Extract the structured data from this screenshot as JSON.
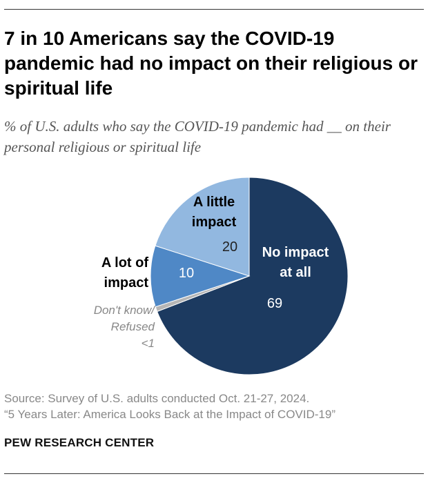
{
  "header": {
    "title": "7 in 10 Americans say the COVID-19 pandemic had no impact on their religious or spiritual life",
    "subtitle": "% of U.S. adults who say the COVID-19 pandemic had __ on their personal religious or spiritual life"
  },
  "chart_data": {
    "type": "pie",
    "title": "",
    "slices": [
      {
        "label_lines": [
          "No impact",
          "at all"
        ],
        "value": 69,
        "value_label": "69",
        "color": "#1c3a60"
      },
      {
        "label_lines": [
          "Don't know/",
          "Refused"
        ],
        "value": 0.8,
        "value_label": "<1",
        "color": "#b5b5b5"
      },
      {
        "label_lines": [
          "A lot of",
          "impact"
        ],
        "value": 10,
        "value_label": "10",
        "color": "#4f88c6"
      },
      {
        "label_lines": [
          "A little",
          "impact"
        ],
        "value": 20,
        "value_label": "20",
        "color": "#92b8e0"
      }
    ],
    "start": "12 o'clock",
    "direction": "clockwise"
  },
  "footer": {
    "source_line1": "Source: Survey of U.S. adults conducted Oct. 21-27, 2024.",
    "source_line2": "“5 Years Later: America Looks Back at the Impact of COVID-19”",
    "brand": "PEW RESEARCH CENTER"
  }
}
